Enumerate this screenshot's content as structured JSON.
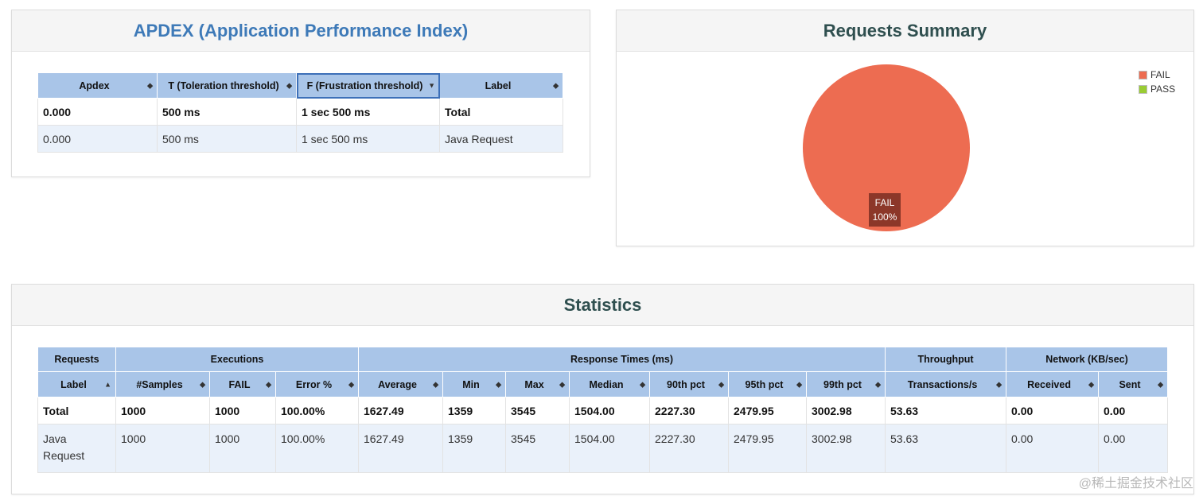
{
  "apdex": {
    "title": "APDEX (Application Performance Index)",
    "columns": [
      "Apdex",
      "T (Toleration threshold)",
      "F (Frustration threshold)",
      "Label"
    ],
    "rows": [
      [
        "0.000",
        "500 ms",
        "1 sec 500 ms",
        "Total"
      ],
      [
        "0.000",
        "500 ms",
        "1 sec 500 ms",
        "Java Request"
      ]
    ]
  },
  "summary": {
    "title": "Requests Summary",
    "legend": [
      {
        "label": "FAIL",
        "color": "#ed6c51"
      },
      {
        "label": "PASS",
        "color": "#99cc33"
      }
    ],
    "slice_label_line1": "FAIL",
    "slice_label_line2": "100%"
  },
  "chart_data": {
    "type": "pie",
    "categories": [
      "FAIL",
      "PASS"
    ],
    "values": [
      100,
      0
    ],
    "legend_position": "top-right"
  },
  "statistics": {
    "title": "Statistics",
    "groups": [
      "Requests",
      "Executions",
      "Response Times (ms)",
      "Throughput",
      "Network (KB/sec)"
    ],
    "columns": [
      "Label",
      "#Samples",
      "FAIL",
      "Error %",
      "Average",
      "Min",
      "Max",
      "Median",
      "90th pct",
      "95th pct",
      "99th pct",
      "Transactions/s",
      "Received",
      "Sent"
    ],
    "rows": [
      [
        "Total",
        "1000",
        "1000",
        "100.00%",
        "1627.49",
        "1359",
        "3545",
        "1504.00",
        "2227.30",
        "2479.95",
        "3002.98",
        "53.63",
        "0.00",
        "0.00"
      ],
      [
        "Java Request",
        "1000",
        "1000",
        "100.00%",
        "1627.49",
        "1359",
        "3545",
        "1504.00",
        "2227.30",
        "2479.95",
        "3002.98",
        "53.63",
        "0.00",
        "0.00"
      ]
    ]
  },
  "watermark": "@稀土掘金技术社区"
}
